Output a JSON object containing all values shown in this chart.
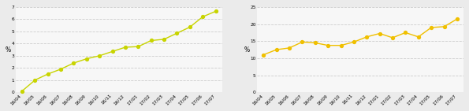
{
  "x_labels": [
    "16/04",
    "16/05",
    "16/06",
    "16/07",
    "16/08",
    "16/09",
    "16/10",
    "16/11",
    "16/12",
    "17/01",
    "17/02",
    "17/03",
    "17/04",
    "17/05",
    "17/06",
    "17/07"
  ],
  "chart1_values": [
    0.1,
    1.0,
    1.5,
    1.9,
    2.4,
    2.75,
    3.0,
    3.35,
    3.7,
    3.75,
    4.25,
    4.35,
    4.85,
    5.35,
    6.2,
    6.65
  ],
  "chart1_ylim": [
    0,
    7
  ],
  "chart1_yticks": [
    0,
    1,
    2,
    3,
    4,
    5,
    6,
    7
  ],
  "chart1_ylabel": "%",
  "chart1_color": "#c8d400",
  "chart2_values": [
    11.0,
    12.5,
    13.0,
    14.75,
    14.5,
    13.75,
    13.75,
    14.75,
    16.25,
    17.25,
    16.0,
    17.5,
    16.25,
    19.0,
    19.25,
    21.5
  ],
  "chart2_ylim": [
    0,
    25
  ],
  "chart2_yticks": [
    0,
    5,
    10,
    15,
    20,
    25
  ],
  "chart2_ylabel": "%",
  "chart2_color": "#f0c000",
  "bg_color": "#ebebeb",
  "plot_bg_color": "#f7f7f7",
  "grid_color": "#cccccc",
  "marker": "o",
  "markersize": 2.8,
  "linewidth": 1.0,
  "tick_fontsize": 4.2,
  "ylabel_fontsize": 5.5
}
